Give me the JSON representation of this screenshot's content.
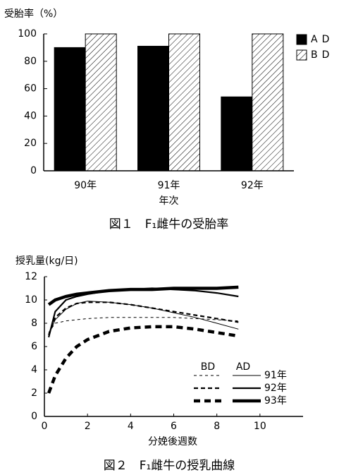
{
  "chart_data": [
    {
      "type": "bar",
      "y_label": "受胎率（%）",
      "x_label": "年次",
      "caption": "図１　F₁雌牛の受胎率",
      "categories": [
        "90年",
        "91年",
        "92年"
      ],
      "series": [
        {
          "name": "AD",
          "color": "#000000",
          "values": [
            90,
            91,
            54
          ]
        },
        {
          "name": "BD",
          "color": "#ffffff",
          "hatch": true,
          "values": [
            100,
            100,
            100
          ]
        }
      ],
      "ylim": [
        0,
        100
      ],
      "yticks": [
        0,
        20,
        40,
        60,
        80,
        100
      ],
      "legend": "right"
    },
    {
      "type": "line",
      "y_label": "授乳量(kg/日)",
      "x_label": "分娩後週数",
      "caption": "図２　F₁雌牛の授乳曲線",
      "x": [
        0.2,
        0.5,
        1,
        1.5,
        2,
        3,
        4,
        5,
        6,
        7,
        8,
        9
      ],
      "groups": [
        {
          "name": "BD",
          "style": "dashed"
        },
        {
          "name": "AD",
          "style": "solid"
        }
      ],
      "series": [
        {
          "name": "91年",
          "weight": "thin",
          "color": "#000000",
          "BD": [
            7.2,
            8.0,
            8.2,
            8.3,
            8.4,
            8.5,
            8.5,
            8.5,
            8.5,
            8.4,
            8.3,
            8.2
          ],
          "AD": [
            7.0,
            8.3,
            9.2,
            9.7,
            9.9,
            9.8,
            9.6,
            9.3,
            8.9,
            8.5,
            8.0,
            7.5
          ]
        },
        {
          "name": "92年",
          "weight": "medium",
          "color": "#000000",
          "BD": [
            7.0,
            8.5,
            9.3,
            9.7,
            9.8,
            9.8,
            9.6,
            9.3,
            9.0,
            8.7,
            8.4,
            8.1
          ],
          "AD": [
            6.8,
            9.0,
            10.0,
            10.3,
            10.5,
            10.8,
            10.9,
            11.0,
            10.9,
            10.8,
            10.6,
            10.3
          ]
        },
        {
          "name": "93年",
          "weight": "thick",
          "color": "#000000",
          "BD": [
            2.0,
            3.5,
            5.0,
            6.0,
            6.6,
            7.3,
            7.6,
            7.7,
            7.7,
            7.5,
            7.2,
            6.9
          ],
          "AD": [
            9.6,
            10.0,
            10.3,
            10.5,
            10.6,
            10.8,
            10.9,
            10.9,
            11.0,
            11.0,
            11.0,
            11.1
          ]
        }
      ],
      "xlim": [
        0,
        12
      ],
      "xticks": [
        0,
        2,
        4,
        6,
        8,
        10
      ],
      "ylim": [
        0,
        12
      ],
      "yticks": [
        0,
        2,
        4,
        6,
        8,
        10,
        12
      ],
      "legend": "lower right"
    }
  ]
}
